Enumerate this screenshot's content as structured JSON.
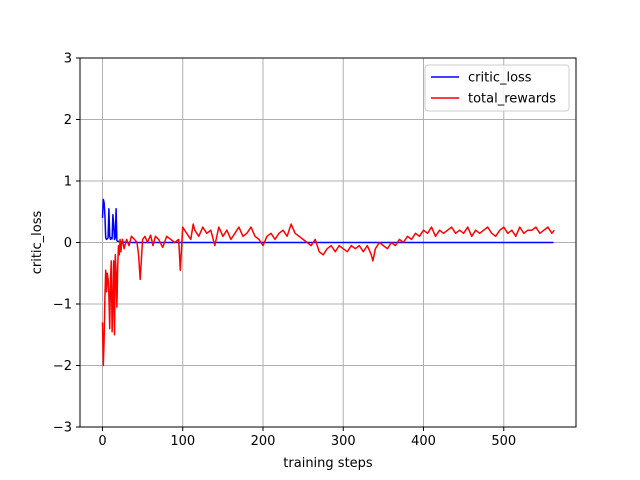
{
  "chart_data": {
    "type": "line",
    "title": "",
    "xlabel": "training steps",
    "ylabel": "critic_loss",
    "xlim": [
      -28,
      590
    ],
    "ylim": [
      -3,
      3
    ],
    "xticks": [
      0,
      100,
      200,
      300,
      400,
      500
    ],
    "yticks": [
      -3,
      -2,
      -1,
      0,
      1,
      2,
      3
    ],
    "xtick_labels": [
      "0",
      "100",
      "200",
      "300",
      "400",
      "500"
    ],
    "ytick_labels": [
      "−3",
      "−2",
      "−1",
      "0",
      "1",
      "2",
      "3"
    ],
    "grid": true,
    "legend_position": "top-right",
    "series": [
      {
        "name": "critic_loss",
        "color": "#0000ff",
        "x": [
          0,
          1,
          2,
          3,
          4,
          5,
          6,
          7,
          8,
          9,
          10,
          11,
          12,
          13,
          14,
          15,
          16,
          17,
          18,
          19,
          20,
          22,
          25,
          30,
          40,
          60,
          100,
          150,
          200,
          250,
          300,
          350,
          400,
          450,
          500,
          562
        ],
        "y": [
          0.4,
          0.7,
          0.65,
          0.45,
          0.08,
          0.05,
          0.06,
          0.08,
          0.55,
          0.1,
          0.05,
          0.08,
          0.06,
          0.45,
          0.3,
          0.05,
          0.08,
          0.55,
          0.03,
          0.02,
          0.02,
          0.01,
          0.01,
          0.0,
          0.0,
          0.0,
          0.0,
          0.0,
          0.0,
          0.0,
          0.0,
          0.0,
          0.0,
          0.0,
          0.0,
          0.0
        ]
      },
      {
        "name": "total_rewards",
        "color": "#ff0000",
        "x": [
          0,
          1,
          2,
          3,
          4,
          5,
          6,
          7,
          8,
          9,
          10,
          11,
          12,
          13,
          14,
          15,
          16,
          17,
          18,
          19,
          20,
          21,
          22,
          23,
          24,
          25,
          27,
          30,
          33,
          36,
          40,
          43,
          45,
          47,
          50,
          53,
          56,
          60,
          63,
          66,
          70,
          75,
          80,
          85,
          90,
          95,
          97,
          100,
          105,
          110,
          113,
          115,
          120,
          125,
          130,
          135,
          140,
          145,
          150,
          155,
          160,
          165,
          170,
          175,
          180,
          185,
          190,
          195,
          200,
          205,
          210,
          215,
          220,
          225,
          230,
          235,
          240,
          245,
          250,
          255,
          260,
          265,
          270,
          275,
          280,
          285,
          290,
          295,
          300,
          305,
          310,
          315,
          320,
          325,
          330,
          335,
          337,
          340,
          345,
          350,
          355,
          360,
          365,
          370,
          375,
          380,
          385,
          390,
          395,
          400,
          405,
          410,
          415,
          420,
          425,
          430,
          435,
          440,
          445,
          450,
          455,
          460,
          465,
          470,
          475,
          480,
          485,
          490,
          495,
          500,
          505,
          510,
          515,
          520,
          525,
          530,
          535,
          540,
          545,
          550,
          555,
          560,
          563
        ],
        "y": [
          -1.3,
          -2.0,
          -1.6,
          -0.9,
          -0.45,
          -0.8,
          -0.5,
          -0.6,
          -0.85,
          -1.4,
          -0.6,
          -0.3,
          -1.45,
          -1.0,
          -0.3,
          -1.5,
          -0.2,
          -0.5,
          -1.05,
          -0.4,
          -0.05,
          -0.2,
          0.05,
          -0.15,
          0.0,
          0.05,
          -0.1,
          0.05,
          -0.05,
          0.1,
          0.05,
          0.0,
          -0.2,
          -0.6,
          0.05,
          0.1,
          0.0,
          0.12,
          -0.05,
          0.1,
          0.05,
          -0.08,
          0.1,
          0.05,
          0.0,
          0.05,
          -0.45,
          0.25,
          0.15,
          0.05,
          0.3,
          0.2,
          0.1,
          0.25,
          0.15,
          0.2,
          -0.05,
          0.25,
          0.1,
          0.2,
          0.05,
          0.15,
          0.25,
          0.1,
          0.15,
          0.25,
          0.1,
          0.05,
          -0.05,
          0.1,
          0.15,
          0.05,
          0.15,
          0.2,
          0.1,
          0.3,
          0.15,
          0.1,
          0.05,
          0.0,
          -0.05,
          0.05,
          -0.15,
          -0.2,
          -0.1,
          -0.05,
          -0.15,
          -0.05,
          -0.1,
          -0.15,
          -0.05,
          -0.1,
          -0.05,
          -0.15,
          -0.05,
          -0.2,
          -0.3,
          -0.1,
          0.0,
          -0.05,
          -0.1,
          0.0,
          -0.05,
          0.05,
          0.0,
          0.1,
          0.05,
          0.15,
          0.1,
          0.2,
          0.15,
          0.25,
          0.1,
          0.2,
          0.15,
          0.2,
          0.25,
          0.15,
          0.2,
          0.15,
          0.25,
          0.1,
          0.2,
          0.15,
          0.2,
          0.25,
          0.15,
          0.1,
          0.2,
          0.25,
          0.15,
          0.2,
          0.1,
          0.25,
          0.15,
          0.2,
          0.2,
          0.25,
          0.15,
          0.2,
          0.25,
          0.15,
          0.2
        ]
      }
    ]
  }
}
